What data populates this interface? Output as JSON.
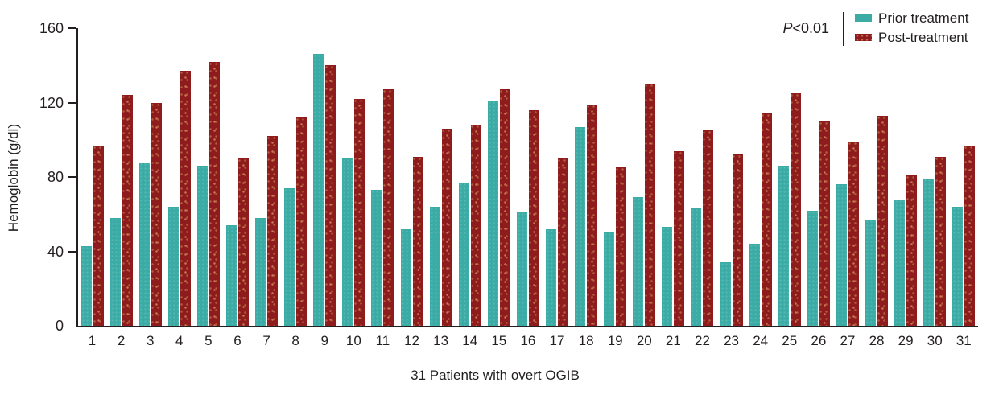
{
  "chart_data": {
    "type": "bar",
    "title": "",
    "xlabel": "31 Patients with overt OGIB",
    "ylabel": "Hemoglobin (g/dl)",
    "ylim": [
      0,
      160
    ],
    "yticks": [
      0,
      40,
      80,
      120,
      160
    ],
    "grid": false,
    "legend_position": "top-right",
    "annotation": {
      "p_italic": "P",
      "p_rest": "<0.01"
    },
    "categories": [
      "1",
      "2",
      "3",
      "4",
      "5",
      "6",
      "7",
      "8",
      "9",
      "10",
      "11",
      "12",
      "13",
      "14",
      "15",
      "16",
      "17",
      "18",
      "19",
      "20",
      "21",
      "22",
      "23",
      "24",
      "25",
      "26",
      "27",
      "28",
      "29",
      "30",
      "31"
    ],
    "series": [
      {
        "name": "Prior treatment",
        "color": "#3BABA5",
        "values": [
          43,
          58,
          88,
          64,
          86,
          54,
          58,
          74,
          146,
          90,
          73,
          52,
          64,
          77,
          121,
          61,
          52,
          107,
          50,
          69,
          53,
          63,
          34,
          44,
          86,
          62,
          76,
          57,
          68,
          79,
          64
        ]
      },
      {
        "name": "Post-treatment",
        "color": "#8E1C1C",
        "values": [
          97,
          124,
          120,
          137,
          142,
          90,
          102,
          112,
          140,
          122,
          127,
          91,
          106,
          108,
          127,
          116,
          90,
          119,
          85,
          130,
          94,
          105,
          92,
          114,
          125,
          110,
          99,
          113,
          81,
          91,
          97
        ]
      }
    ],
    "axis_color": "#231f20"
  }
}
